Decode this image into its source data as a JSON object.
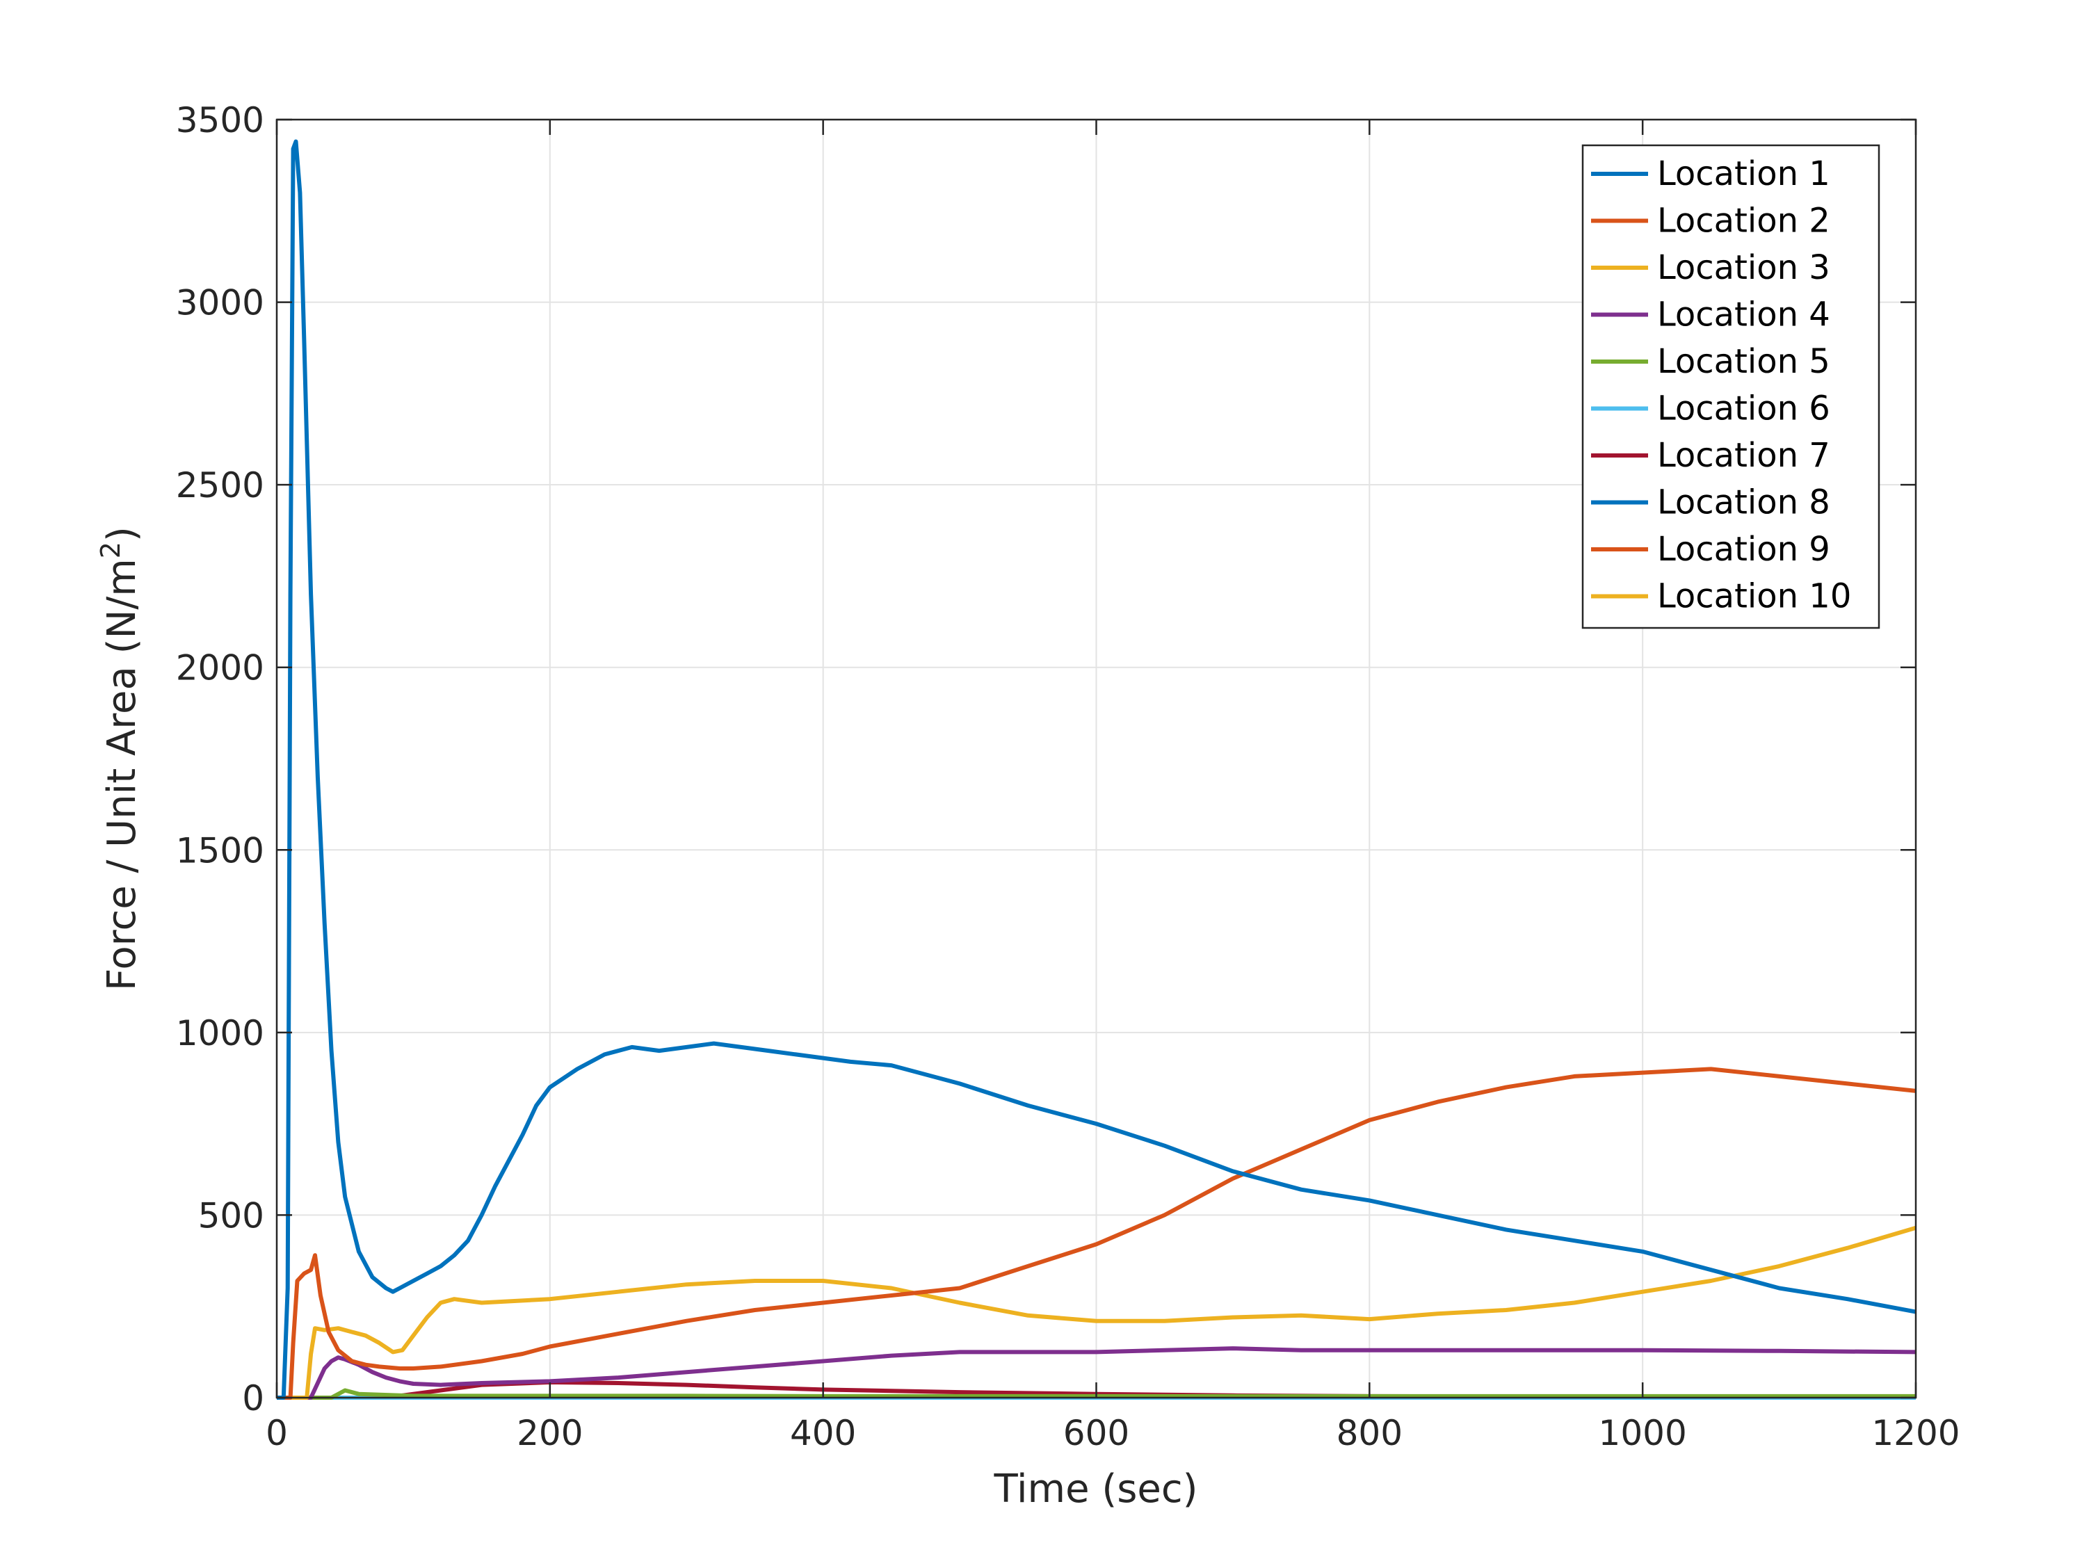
{
  "chart_data": {
    "type": "line",
    "title": "",
    "xlabel": "Time (sec)",
    "ylabel_main": "Force / Unit Area (N/m",
    "ylabel_sup": "2",
    "ylabel_end": ")",
    "xlim": [
      0,
      1200
    ],
    "ylim": [
      0,
      3500
    ],
    "xticks": [
      0,
      200,
      400,
      600,
      800,
      1000,
      1200
    ],
    "yticks": [
      0,
      500,
      1000,
      1500,
      2000,
      2500,
      3000,
      3500
    ],
    "grid": true,
    "legend_position": "top-right",
    "series": [
      {
        "name": "Location 1",
        "color": "#0072BD",
        "x": [
          0,
          5,
          8,
          10,
          12,
          14,
          17,
          20,
          25,
          30,
          35,
          40,
          45,
          50,
          60,
          70,
          80,
          85,
          90,
          100,
          110,
          120,
          130,
          140,
          150,
          160,
          170,
          180,
          190,
          200,
          220,
          240,
          260,
          280,
          300,
          320,
          340,
          360,
          380,
          400,
          420,
          450,
          500,
          550,
          600,
          650,
          700,
          750,
          800,
          850,
          900,
          950,
          1000,
          1050,
          1100,
          1150,
          1200
        ],
        "y": [
          0,
          0,
          300,
          2200,
          3420,
          3440,
          3300,
          2900,
          2200,
          1700,
          1300,
          950,
          700,
          550,
          400,
          330,
          300,
          290,
          300,
          320,
          340,
          360,
          390,
          430,
          500,
          580,
          650,
          720,
          800,
          850,
          900,
          940,
          960,
          950,
          960,
          970,
          960,
          950,
          940,
          930,
          920,
          910,
          860,
          800,
          750,
          690,
          620,
          570,
          540,
          500,
          460,
          430,
          400,
          350,
          300,
          270,
          235
        ]
      },
      {
        "name": "Location 2",
        "color": "#D95319",
        "x": [
          0,
          10,
          12,
          15,
          20,
          25,
          28,
          32,
          38,
          45,
          55,
          65,
          75,
          90,
          100,
          120,
          150,
          180,
          200,
          250,
          300,
          350,
          400,
          450,
          500,
          550,
          600,
          650,
          700,
          750,
          800,
          850,
          900,
          950,
          1000,
          1050,
          1100,
          1150,
          1200
        ],
        "y": [
          0,
          0,
          150,
          320,
          340,
          350,
          390,
          280,
          180,
          130,
          100,
          90,
          85,
          80,
          80,
          85,
          100,
          120,
          140,
          175,
          210,
          240,
          260,
          280,
          300,
          360,
          420,
          500,
          600,
          680,
          760,
          810,
          850,
          880,
          890,
          900,
          880,
          860,
          840
        ]
      },
      {
        "name": "Location 3",
        "color": "#EDB120",
        "x": [
          0,
          22,
          25,
          28,
          35,
          45,
          55,
          65,
          75,
          85,
          92,
          100,
          110,
          120,
          130,
          150,
          200,
          250,
          300,
          350,
          400,
          450,
          500,
          550,
          600,
          650,
          700,
          750,
          800,
          850,
          900,
          950,
          1000,
          1050,
          1100,
          1150,
          1200
        ],
        "y": [
          0,
          0,
          120,
          190,
          185,
          190,
          180,
          170,
          150,
          125,
          130,
          170,
          220,
          260,
          270,
          260,
          270,
          290,
          310,
          320,
          320,
          300,
          260,
          225,
          210,
          210,
          220,
          225,
          215,
          230,
          240,
          260,
          290,
          320,
          360,
          410,
          465
        ]
      },
      {
        "name": "Location 4",
        "color": "#7E2F8E",
        "x": [
          0,
          25,
          30,
          35,
          40,
          45,
          50,
          60,
          70,
          80,
          90,
          100,
          120,
          150,
          200,
          250,
          300,
          350,
          400,
          450,
          500,
          550,
          600,
          650,
          700,
          750,
          800,
          900,
          1000,
          1100,
          1200
        ],
        "y": [
          0,
          0,
          40,
          80,
          100,
          110,
          105,
          90,
          70,
          55,
          45,
          38,
          35,
          40,
          45,
          55,
          70,
          85,
          100,
          115,
          125,
          125,
          125,
          130,
          135,
          130,
          130,
          130,
          130,
          128,
          125
        ]
      },
      {
        "name": "Location 5",
        "color": "#77AC30",
        "x": [
          0,
          40,
          50,
          60,
          100,
          200,
          300,
          400,
          500,
          600,
          700,
          800,
          900,
          1000,
          1100,
          1200
        ],
        "y": [
          0,
          0,
          20,
          10,
          5,
          5,
          5,
          4,
          4,
          4,
          4,
          4,
          4,
          4,
          4,
          4
        ]
      },
      {
        "name": "Location 6",
        "color": "#4DBEEE",
        "x": [
          0,
          1200
        ],
        "y": [
          0,
          0
        ]
      },
      {
        "name": "Location 7",
        "color": "#A2142F",
        "x": [
          0,
          80,
          120,
          150,
          200,
          250,
          300,
          350,
          400,
          500,
          600,
          700,
          800,
          900,
          1000,
          1100,
          1200
        ],
        "y": [
          0,
          0,
          20,
          35,
          42,
          40,
          35,
          28,
          22,
          15,
          10,
          6,
          4,
          3,
          2,
          1,
          1
        ]
      },
      {
        "name": "Location 8",
        "color": "#0072BD",
        "x": [
          0,
          1200
        ],
        "y": [
          0,
          0
        ]
      },
      {
        "name": "Location 9",
        "color": "#D95319",
        "x": [
          0,
          1200
        ],
        "y": [
          0,
          0
        ]
      },
      {
        "name": "Location 10",
        "color": "#EDB120",
        "x": [
          0,
          1200
        ],
        "y": [
          0,
          0
        ]
      }
    ]
  }
}
